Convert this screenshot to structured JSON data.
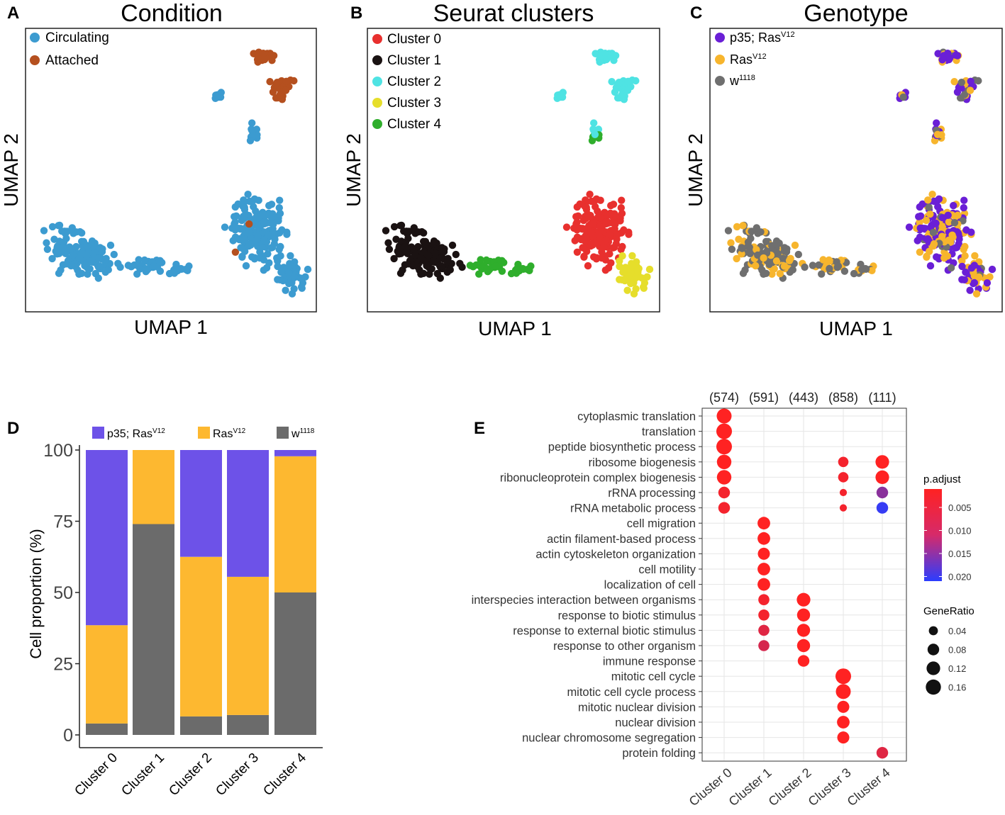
{
  "panel_letters": [
    "A",
    "B",
    "C",
    "D",
    "E"
  ],
  "colors": {
    "circulating": "#3c9bd0",
    "attached": "#b5501f",
    "cluster0": "#e8302e",
    "cluster1": "#1a1212",
    "cluster2": "#4fe3e3",
    "cluster3": "#e6de2b",
    "cluster4": "#2fae2c",
    "p35ras": "#6a1fd6",
    "ras": "#f7b52d",
    "w1118": "#6f6f6f",
    "bar_p35ras": "#6d52e8",
    "bar_ras": "#fdb830",
    "bar_w1118": "#6b6b6b",
    "padj_low": "#ff2222",
    "padj_high": "#2b3dff"
  },
  "chart_data": [
    {
      "id": "A",
      "type": "scatter",
      "title": "Condition",
      "xlabel": "UMAP 1",
      "ylabel": "UMAP 2",
      "legend": [
        {
          "label": "Circulating",
          "color_key": "circulating"
        },
        {
          "label": "Attached",
          "color_key": "attached"
        }
      ]
    },
    {
      "id": "B",
      "type": "scatter",
      "title": "Seurat clusters",
      "xlabel": "UMAP 1",
      "ylabel": "UMAP 2",
      "legend": [
        {
          "label": "Cluster 0",
          "color_key": "cluster0"
        },
        {
          "label": "Cluster 1",
          "color_key": "cluster1"
        },
        {
          "label": "Cluster 2",
          "color_key": "cluster2"
        },
        {
          "label": "Cluster 3",
          "color_key": "cluster3"
        },
        {
          "label": "Cluster 4",
          "color_key": "cluster4"
        }
      ]
    },
    {
      "id": "C",
      "type": "scatter",
      "title": "Genotype",
      "xlabel": "UMAP 1",
      "ylabel": "UMAP 2",
      "legend": [
        {
          "label": "p35; Ras",
          "sup": "V12",
          "color_key": "p35ras"
        },
        {
          "label": "Ras",
          "sup": "V12",
          "color_key": "ras"
        },
        {
          "label": "w",
          "sup": "1118",
          "color_key": "w1118"
        }
      ]
    },
    {
      "id": "D",
      "type": "bar",
      "stacked": true,
      "ylabel": "Cell proportion (%)",
      "ylim": [
        0,
        100
      ],
      "yticks": [
        "0",
        "25",
        "50",
        "75",
        "100"
      ],
      "categories": [
        "Cluster 0",
        "Cluster 1",
        "Cluster 2",
        "Cluster 3",
        "Cluster 4"
      ],
      "legend": [
        {
          "label": "p35; Ras",
          "sup": "V12",
          "color_key": "bar_p35ras"
        },
        {
          "label": "Ras",
          "sup": "V12",
          "color_key": "bar_ras"
        },
        {
          "label": "w",
          "sup": "1118",
          "color_key": "bar_w1118"
        }
      ],
      "series": [
        {
          "name": "w1118",
          "color_key": "bar_w1118",
          "values": [
            4,
            74,
            6.5,
            7,
            50
          ]
        },
        {
          "name": "RasV12",
          "color_key": "bar_ras",
          "values": [
            34.5,
            26,
            56,
            48.5,
            47.8
          ]
        },
        {
          "name": "p35; RasV12",
          "color_key": "bar_p35ras",
          "values": [
            61.5,
            0,
            37.5,
            44.5,
            2.2
          ]
        }
      ]
    },
    {
      "id": "E",
      "type": "dotplot",
      "columns": [
        "Cluster 0",
        "Cluster 1",
        "Cluster 2",
        "Cluster 3",
        "Cluster 4"
      ],
      "counts": [
        "(574)",
        "(591)",
        "(443)",
        "(858)",
        "(111)"
      ],
      "terms": [
        "cytoplasmic translation",
        "translation",
        "peptide biosynthetic process",
        "ribosome biogenesis",
        "ribonucleoprotein complex biogenesis",
        "rRNA processing",
        "rRNA metabolic process",
        "cell migration",
        "actin filament-based process",
        "actin cytoskeleton organization",
        "cell motility",
        "localization of cell",
        "interspecies interaction between organisms",
        "response to biotic stimulus",
        "response to external biotic stimulus",
        "response to other organism",
        "immune response",
        "mitotic cell cycle",
        "mitotic cell cycle process",
        "mitotic nuclear division",
        "nuclear division",
        "nuclear chromosome segregation",
        "protein folding"
      ],
      "points": [
        {
          "term": 0,
          "col": 0,
          "ratio": 0.15,
          "padj": 0.001
        },
        {
          "term": 1,
          "col": 0,
          "ratio": 0.17,
          "padj": 0.001
        },
        {
          "term": 2,
          "col": 0,
          "ratio": 0.17,
          "padj": 0.001
        },
        {
          "term": 3,
          "col": 0,
          "ratio": 0.14,
          "padj": 0.001
        },
        {
          "term": 4,
          "col": 0,
          "ratio": 0.14,
          "padj": 0.001
        },
        {
          "term": 5,
          "col": 0,
          "ratio": 0.08,
          "padj": 0.002
        },
        {
          "term": 6,
          "col": 0,
          "ratio": 0.08,
          "padj": 0.002
        },
        {
          "term": 3,
          "col": 3,
          "ratio": 0.06,
          "padj": 0.002
        },
        {
          "term": 4,
          "col": 3,
          "ratio": 0.06,
          "padj": 0.002
        },
        {
          "term": 5,
          "col": 3,
          "ratio": 0.02,
          "padj": 0.002
        },
        {
          "term": 6,
          "col": 3,
          "ratio": 0.02,
          "padj": 0.002
        },
        {
          "term": 3,
          "col": 4,
          "ratio": 0.12,
          "padj": 0.001
        },
        {
          "term": 4,
          "col": 4,
          "ratio": 0.12,
          "padj": 0.001
        },
        {
          "term": 5,
          "col": 4,
          "ratio": 0.08,
          "padj": 0.012
        },
        {
          "term": 6,
          "col": 4,
          "ratio": 0.08,
          "padj": 0.02
        },
        {
          "term": 7,
          "col": 1,
          "ratio": 0.1,
          "padj": 0.001
        },
        {
          "term": 8,
          "col": 1,
          "ratio": 0.1,
          "padj": 0.001
        },
        {
          "term": 9,
          "col": 1,
          "ratio": 0.09,
          "padj": 0.001
        },
        {
          "term": 10,
          "col": 1,
          "ratio": 0.1,
          "padj": 0.001
        },
        {
          "term": 11,
          "col": 1,
          "ratio": 0.1,
          "padj": 0.001
        },
        {
          "term": 12,
          "col": 1,
          "ratio": 0.07,
          "padj": 0.002
        },
        {
          "term": 13,
          "col": 1,
          "ratio": 0.07,
          "padj": 0.002
        },
        {
          "term": 14,
          "col": 1,
          "ratio": 0.07,
          "padj": 0.004
        },
        {
          "term": 15,
          "col": 1,
          "ratio": 0.07,
          "padj": 0.005
        },
        {
          "term": 12,
          "col": 2,
          "ratio": 0.12,
          "padj": 0.001
        },
        {
          "term": 13,
          "col": 2,
          "ratio": 0.11,
          "padj": 0.001
        },
        {
          "term": 14,
          "col": 2,
          "ratio": 0.11,
          "padj": 0.001
        },
        {
          "term": 15,
          "col": 2,
          "ratio": 0.11,
          "padj": 0.001
        },
        {
          "term": 16,
          "col": 2,
          "ratio": 0.08,
          "padj": 0.001
        },
        {
          "term": 17,
          "col": 3,
          "ratio": 0.17,
          "padj": 0.001
        },
        {
          "term": 18,
          "col": 3,
          "ratio": 0.15,
          "padj": 0.001
        },
        {
          "term": 19,
          "col": 3,
          "ratio": 0.09,
          "padj": 0.001
        },
        {
          "term": 20,
          "col": 3,
          "ratio": 0.1,
          "padj": 0.001
        },
        {
          "term": 21,
          "col": 3,
          "ratio": 0.09,
          "padj": 0.001
        },
        {
          "term": 22,
          "col": 4,
          "ratio": 0.08,
          "padj": 0.004
        }
      ],
      "padj_legend": {
        "title": "p.adjust",
        "ticks": [
          "0.005",
          "0.010",
          "0.015",
          "0.020"
        ],
        "range": [
          0.001,
          0.021
        ]
      },
      "size_legend": {
        "title": "GeneRatio",
        "ticks": [
          "0.04",
          "0.08",
          "0.12",
          "0.16"
        ]
      }
    }
  ]
}
